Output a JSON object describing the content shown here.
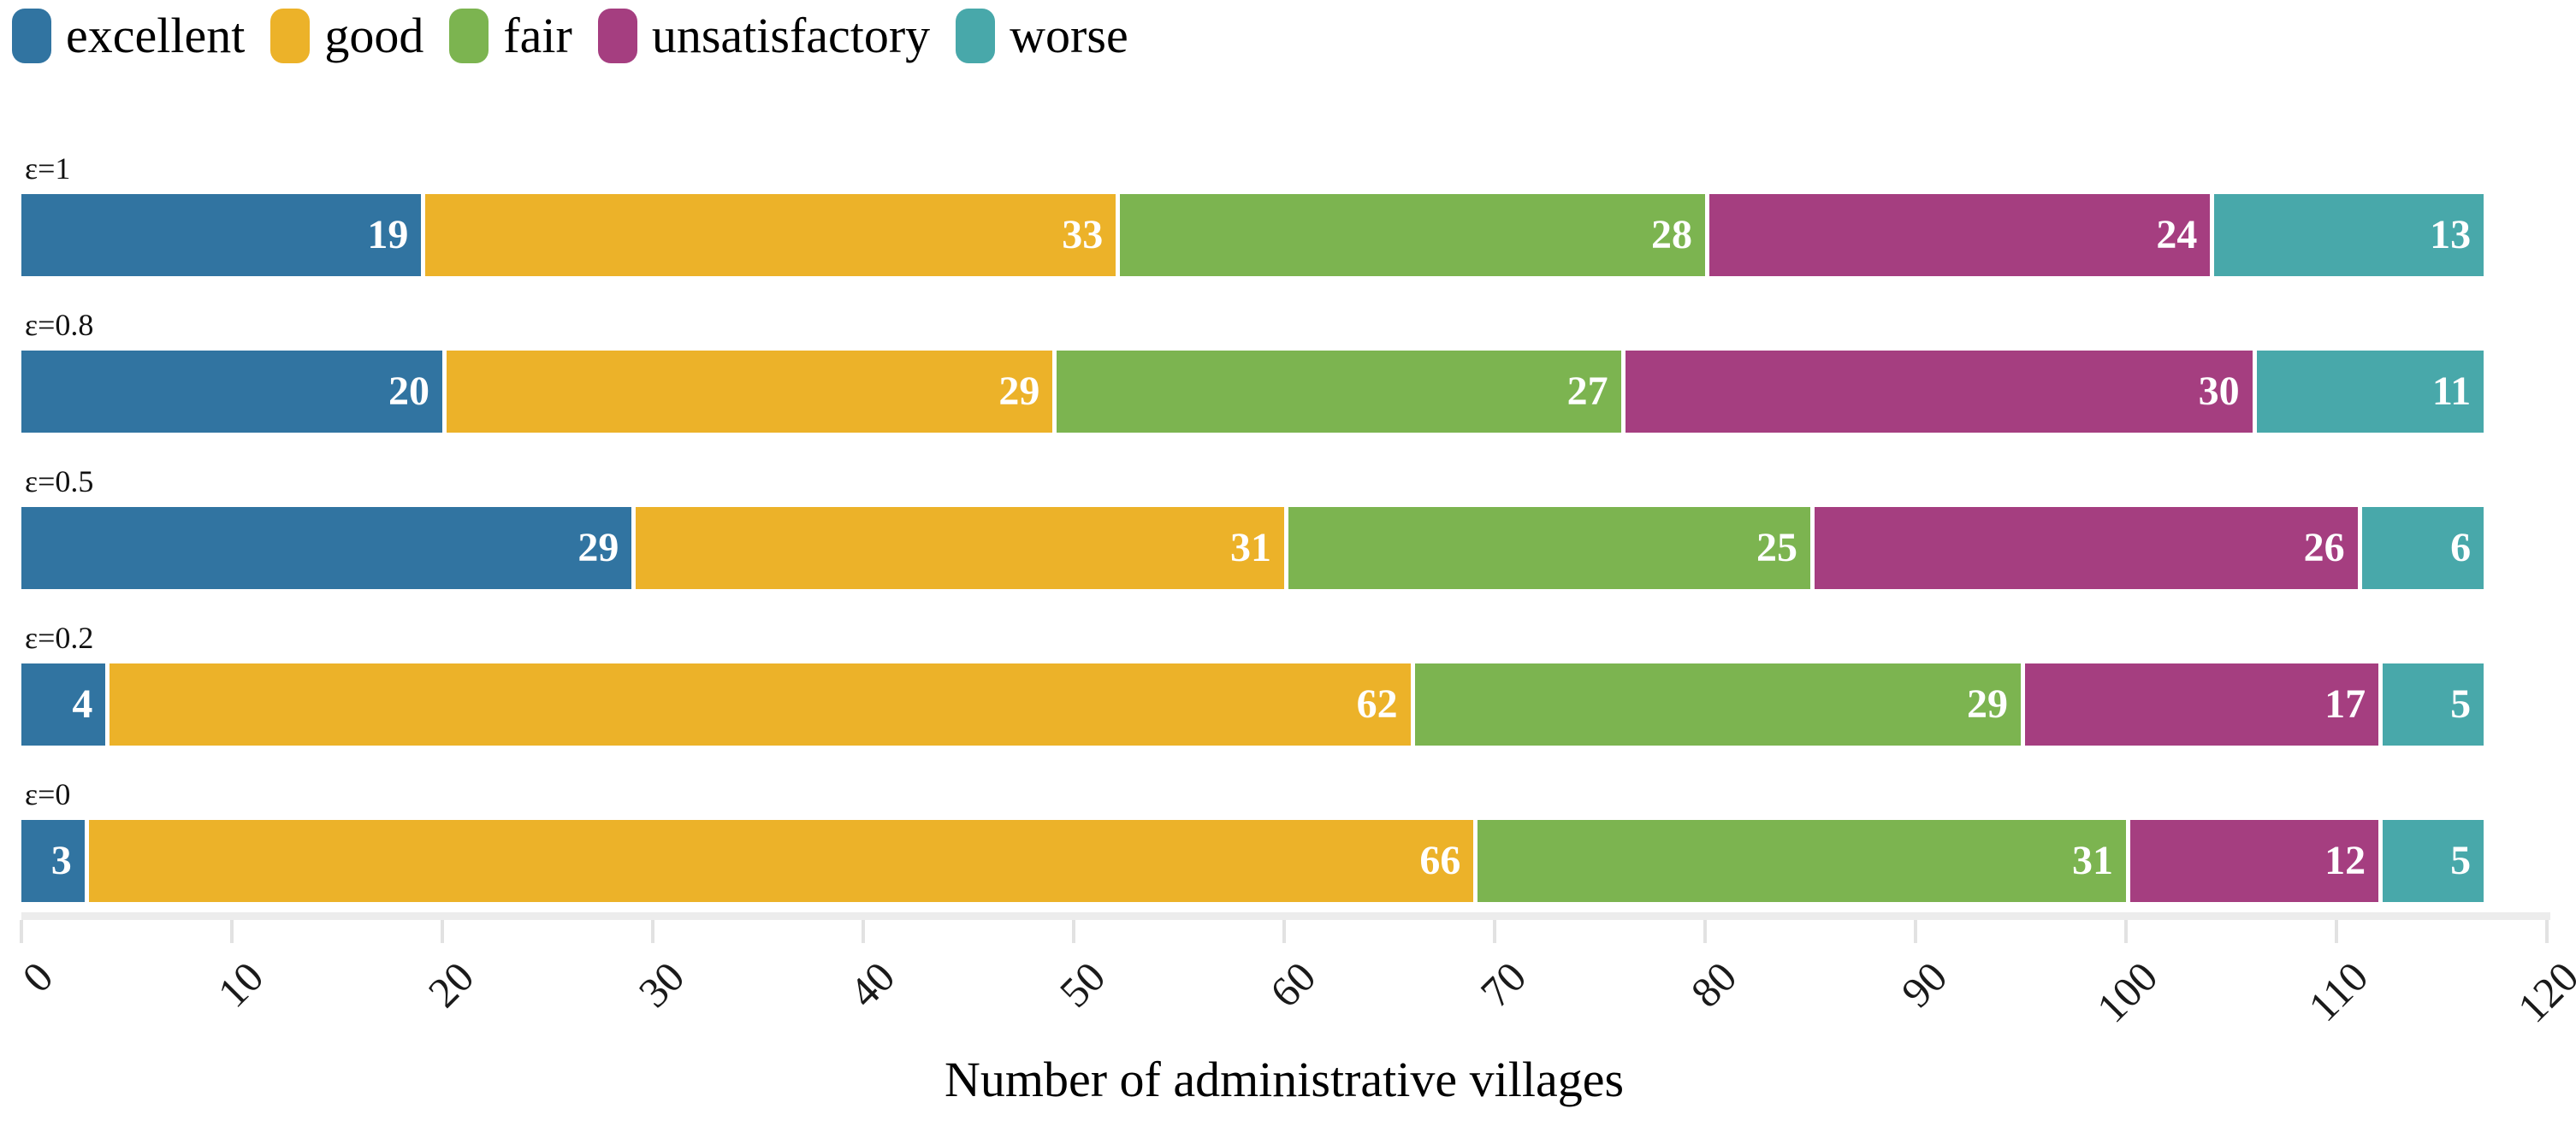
{
  "chart_data": {
    "type": "bar",
    "orientation": "horizontal",
    "stacked": true,
    "title": "",
    "xlabel": "Number of administrative villages",
    "ylabel": "",
    "xlim": [
      0,
      120
    ],
    "x_ticks": [
      0,
      10,
      20,
      30,
      40,
      50,
      60,
      70,
      80,
      90,
      100,
      110,
      120
    ],
    "grid": false,
    "legend_position": "top-left",
    "categories": [
      "ε=1",
      "ε=0.8",
      "ε=0.5",
      "ε=0.2",
      "ε=0"
    ],
    "series": [
      {
        "name": "excellent",
        "color": "#3174a1",
        "values": [
          19,
          20,
          29,
          4,
          3
        ]
      },
      {
        "name": "good",
        "color": "#ecb229",
        "values": [
          33,
          29,
          31,
          62,
          66
        ]
      },
      {
        "name": "fair",
        "color": "#7cb450",
        "values": [
          28,
          27,
          25,
          29,
          31
        ]
      },
      {
        "name": "unsatisfactory",
        "color": "#a53e80",
        "values": [
          24,
          30,
          26,
          17,
          12
        ]
      },
      {
        "name": "worse",
        "color": "#48a8aa",
        "values": [
          13,
          11,
          6,
          5,
          5
        ]
      }
    ],
    "row_totals": [
      117,
      117,
      117,
      117,
      117
    ],
    "value_labels": "white bold numbers right-aligned inside each segment"
  },
  "colors": {
    "background": "#ffffff",
    "axis_band": "#ececec",
    "tick_mark": "#e2e2e2",
    "text": "#000000",
    "bar_value_text": "#ffffff"
  }
}
